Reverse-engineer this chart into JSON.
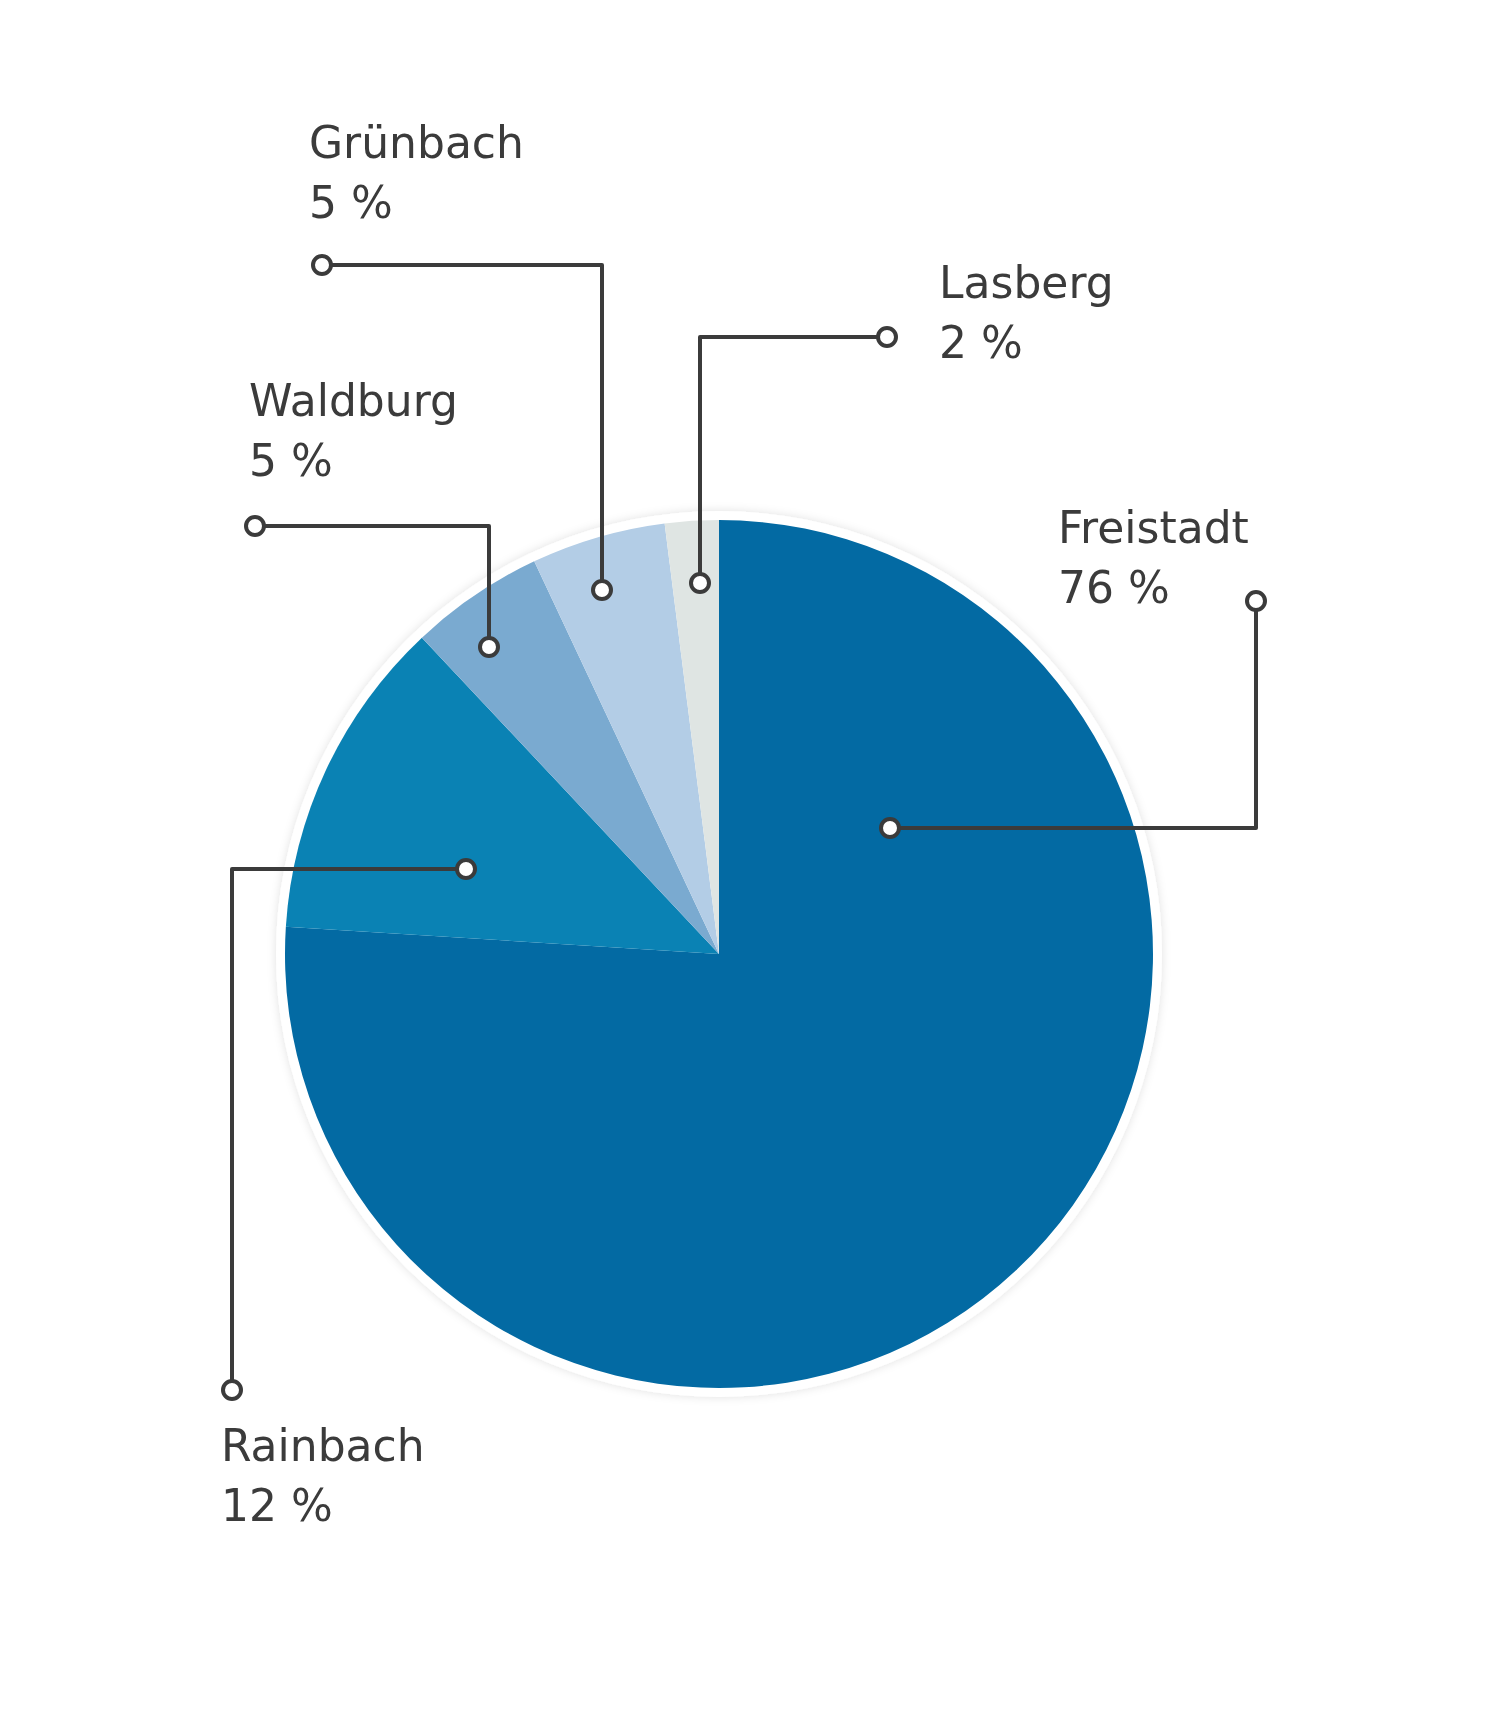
{
  "chart_data": {
    "type": "pie",
    "categories": [
      "Freistadt",
      "Rainbach",
      "Waldburg",
      "Grünbach",
      "Lasberg"
    ],
    "values": [
      76,
      12,
      5,
      5,
      2
    ],
    "colors": [
      "#036aa3",
      "#0a82b4",
      "#7aaad0",
      "#b3cde6",
      "#dfe5e3"
    ],
    "value_labels": [
      "76 %",
      "12 %",
      "5 %",
      "5 %",
      "2 %"
    ]
  }
}
